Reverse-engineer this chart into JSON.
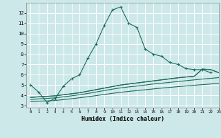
{
  "xlabel": "Humidex (Indice chaleur)",
  "background_color": "#cde8e8",
  "grid_color": "#ffffff",
  "line_color": "#1a6b5a",
  "xlim": [
    -0.5,
    23
  ],
  "ylim": [
    2.8,
    13.0
  ],
  "yticks": [
    3,
    4,
    5,
    6,
    7,
    8,
    9,
    10,
    11,
    12
  ],
  "xticks": [
    0,
    1,
    2,
    3,
    4,
    5,
    6,
    7,
    8,
    9,
    10,
    11,
    12,
    13,
    14,
    15,
    16,
    17,
    18,
    19,
    20,
    21,
    22,
    23
  ],
  "series1_x": [
    0,
    1,
    2,
    3,
    4,
    5,
    6,
    7,
    8,
    9,
    10,
    11,
    12,
    13,
    14,
    15,
    16,
    17,
    18,
    19,
    20,
    21,
    22
  ],
  "series1_y": [
    5.0,
    4.3,
    3.3,
    3.7,
    4.9,
    5.6,
    6.0,
    7.6,
    9.0,
    10.8,
    12.3,
    12.6,
    11.0,
    10.6,
    8.5,
    8.0,
    7.8,
    7.2,
    7.0,
    6.6,
    6.5,
    6.5,
    6.2
  ],
  "series2_x": [
    0,
    1,
    2,
    3,
    4,
    5,
    6,
    7,
    8,
    9,
    10,
    11,
    12,
    13,
    14,
    15,
    16,
    17,
    18,
    19,
    20,
    21,
    22,
    23
  ],
  "series2_y": [
    3.8,
    3.85,
    3.9,
    3.95,
    4.05,
    4.15,
    4.25,
    4.4,
    4.55,
    4.7,
    4.85,
    5.0,
    5.1,
    5.2,
    5.3,
    5.4,
    5.5,
    5.6,
    5.7,
    5.78,
    5.85,
    6.55,
    6.5,
    6.2
  ],
  "series3_x": [
    0,
    1,
    2,
    3,
    4,
    5,
    6,
    7,
    8,
    9,
    10,
    11,
    12,
    13,
    14,
    15,
    16,
    17,
    18,
    19,
    20,
    21,
    22,
    23
  ],
  "series3_y": [
    3.6,
    3.65,
    3.7,
    3.75,
    3.85,
    3.95,
    4.05,
    4.18,
    4.32,
    4.46,
    4.6,
    4.72,
    4.82,
    4.9,
    5.0,
    5.1,
    5.18,
    5.26,
    5.34,
    5.42,
    5.5,
    5.58,
    5.65,
    5.72
  ],
  "series4_x": [
    0,
    1,
    2,
    3,
    4,
    5,
    6,
    7,
    8,
    9,
    10,
    11,
    12,
    13,
    14,
    15,
    16,
    17,
    18,
    19,
    20,
    21,
    22,
    23
  ],
  "series4_y": [
    3.4,
    3.43,
    3.46,
    3.5,
    3.58,
    3.67,
    3.76,
    3.86,
    3.97,
    4.08,
    4.19,
    4.29,
    4.38,
    4.46,
    4.54,
    4.62,
    4.7,
    4.77,
    4.84,
    4.91,
    4.98,
    5.04,
    5.1,
    5.16
  ]
}
